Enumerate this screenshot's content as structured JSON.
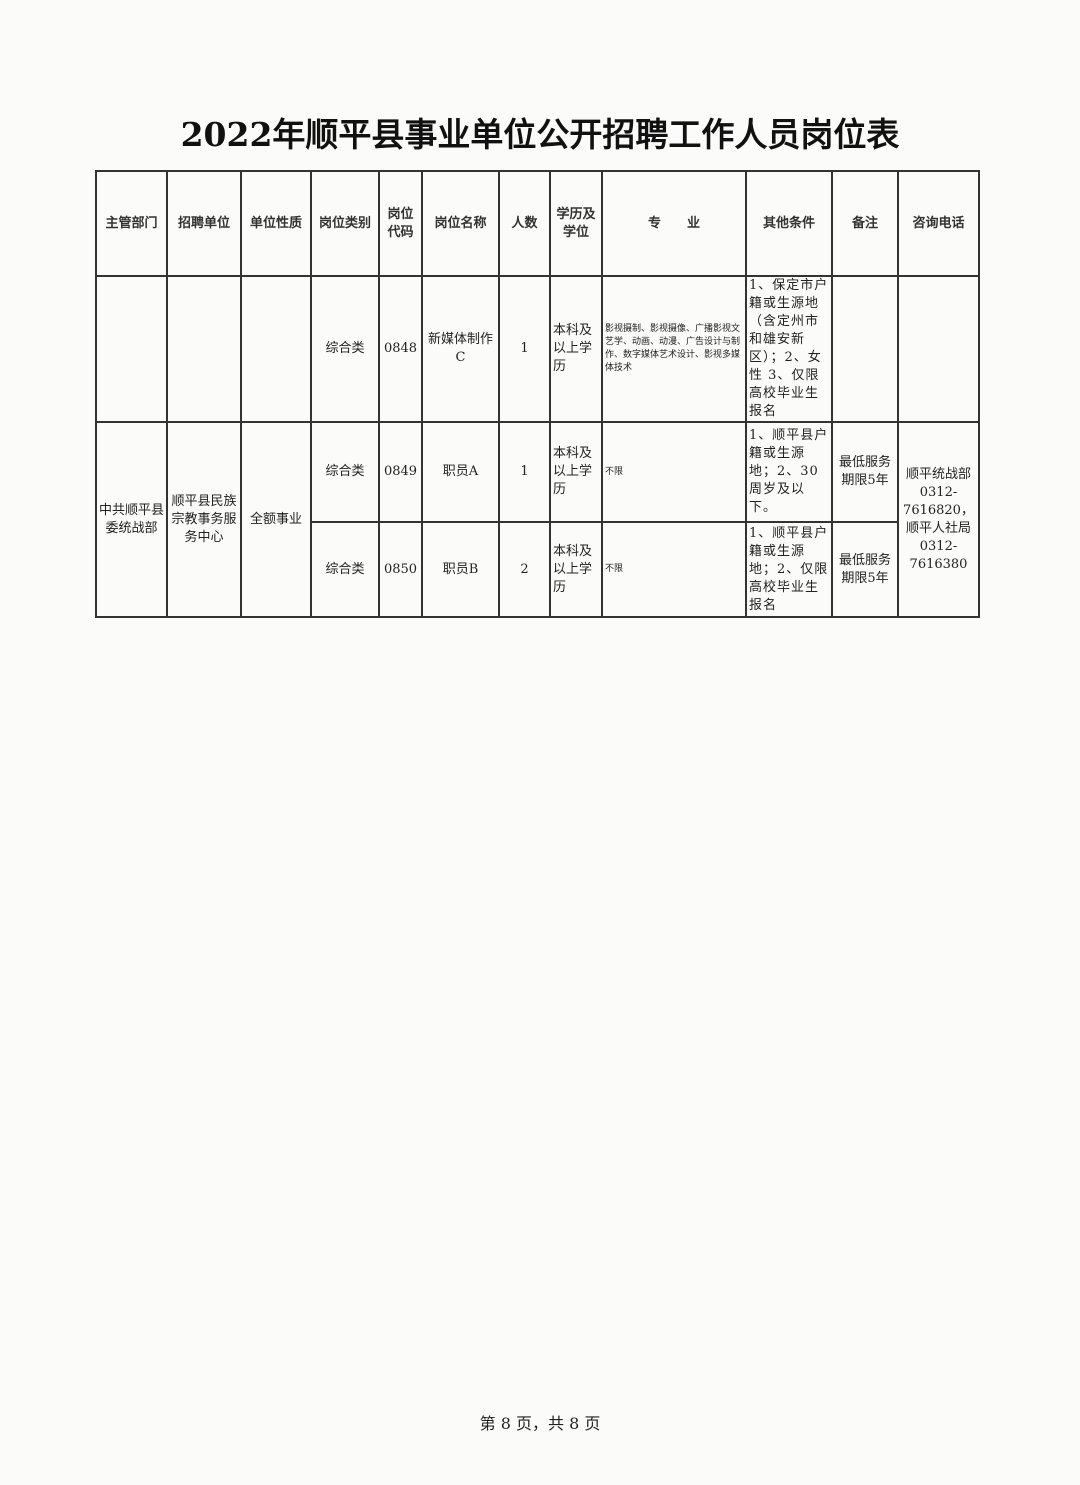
{
  "title": "2022年顺平县事业单位公开招聘工作人员岗位表",
  "headers": [
    "主管部门",
    "招聘单位",
    "单位性质",
    "岗位类别",
    "岗位代码",
    "岗位名称",
    "人数",
    "学历及学位",
    "专　　业",
    "其他条件",
    "备注",
    "咨询电话"
  ],
  "group": {
    "department": "中共顺平县委统战部",
    "unit": "顺平县民族宗教事务服务中心",
    "nature": "全额事业",
    "phone": "顺平统战部0312-7616820，顺平人社局0312-7616380"
  },
  "rows": [
    {
      "category": "综合类",
      "code": "0848",
      "name": "新媒体制作C",
      "count": "1",
      "education": "本科及以上学历",
      "major": "影视摄制、影视摄像、广播影视文艺学、动画、动漫、广告设计与制作、数字媒体艺术设计、影视多媒体技术",
      "conditions": "1、保定市户籍或生源地（含定州市和雄安新区）；2、女性 3、仅限高校毕业生报名",
      "note": ""
    },
    {
      "category": "综合类",
      "code": "0849",
      "name": "职员A",
      "count": "1",
      "education": "本科及以上学历",
      "major": "不限",
      "conditions": "1、顺平县户籍或生源地；2、30周岁及以下。",
      "note": "最低服务期限5年"
    },
    {
      "category": "综合类",
      "code": "0850",
      "name": "职员B",
      "count": "2",
      "education": "本科及以上学历",
      "major": "不限",
      "conditions": "1、顺平县户籍或生源地；2、仅限高校毕业生报名",
      "note": "最低服务期限5年"
    }
  ],
  "footer": "第 8 页，共 8 页"
}
